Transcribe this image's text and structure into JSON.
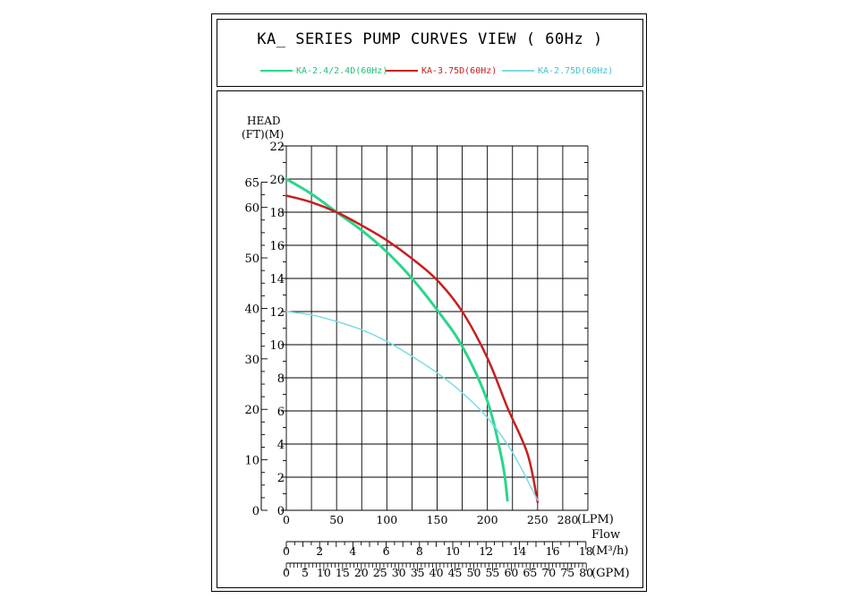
{
  "chart_data": {
    "type": "line",
    "title": "KA_ SERIES PUMP CURVES VIEW ( 60Hz )",
    "legend_position": "top",
    "head_label": "HEAD",
    "head_units_label": "(FT)(M)",
    "flow_label": "Flow",
    "grid": true,
    "y_m_ticks": [
      0,
      2,
      4,
      6,
      8,
      10,
      12,
      14,
      16,
      18,
      20,
      22
    ],
    "y_ft_ticks": [
      0,
      10,
      20,
      30,
      40,
      50,
      60,
      65
    ],
    "x_lpm_ticks": [
      0,
      50,
      100,
      150,
      200,
      250,
      280
    ],
    "x_lpm_unit": "(LPM)",
    "x_m3h_ticks": [
      0,
      2,
      4,
      6,
      8,
      10,
      12,
      14,
      16,
      18
    ],
    "x_m3h_unit": "(M³/h)",
    "x_gpm_ticks": [
      0,
      5,
      10,
      15,
      20,
      25,
      30,
      35,
      40,
      45,
      50,
      55,
      60,
      65,
      70,
      75,
      80
    ],
    "x_gpm_unit": "(GPM)",
    "xlim": [
      0,
      300
    ],
    "ylim": [
      0,
      22
    ],
    "series": [
      {
        "name": "KA-2.4/2.4D(60Hz)",
        "color": "#2ad68a",
        "x": [
          0,
          25,
          50,
          75,
          100,
          125,
          150,
          175,
          200,
          215,
          220
        ],
        "y": [
          20,
          19.1,
          18.0,
          16.9,
          15.6,
          14.0,
          12.1,
          9.9,
          6.6,
          2.9,
          0.6
        ]
      },
      {
        "name": "KA-3.75D(60Hz)",
        "color": "#c81e1e",
        "x": [
          0,
          25,
          50,
          75,
          100,
          125,
          150,
          175,
          200,
          220,
          240,
          250
        ],
        "y": [
          19.0,
          18.6,
          18.0,
          17.2,
          16.3,
          15.2,
          13.9,
          12.0,
          9.2,
          6.2,
          3.4,
          0.5
        ]
      },
      {
        "name": "KA-2.75D(60Hz)",
        "color": "#7adce4",
        "x": [
          0,
          25,
          50,
          75,
          100,
          125,
          150,
          175,
          200,
          225,
          250
        ],
        "y": [
          12.0,
          11.8,
          11.4,
          10.9,
          10.2,
          9.3,
          8.3,
          7.1,
          5.6,
          3.5,
          0.6
        ]
      }
    ]
  }
}
